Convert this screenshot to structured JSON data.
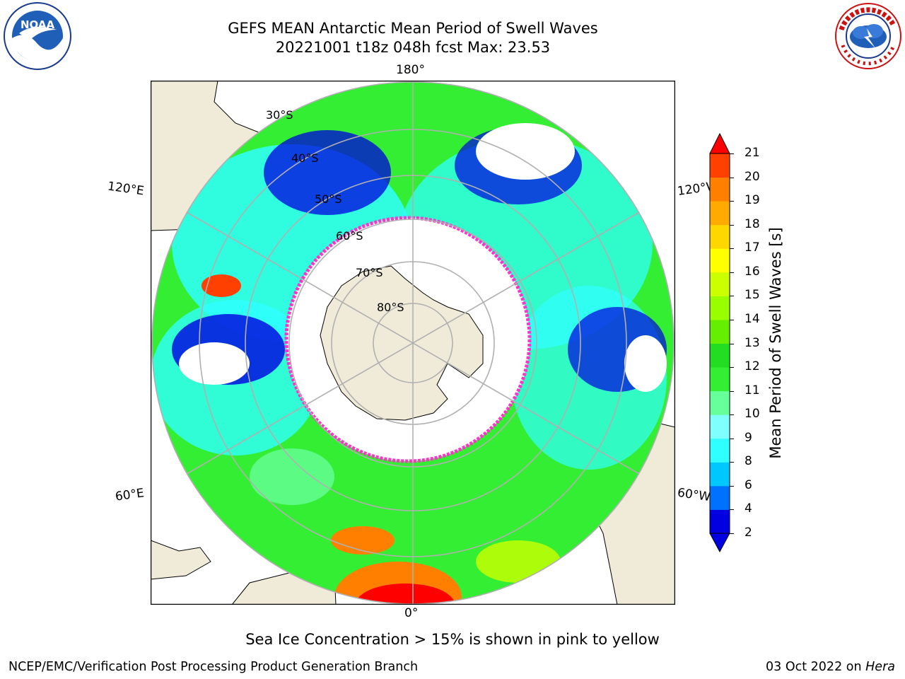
{
  "header": {
    "title_line1": "GEFS MEAN Antarctic Mean Period of Swell Waves",
    "title_line2": "20221001 t18z 048h fcst   Max: 23.53"
  },
  "logos": {
    "left": {
      "text": "NOAA",
      "icon": "noaa-logo-icon"
    },
    "right": {
      "text": "NATIONAL WEATHER SERVICE",
      "icon": "nws-logo-icon"
    }
  },
  "map": {
    "projection": "south-polar-stereographic",
    "longitude_labels": {
      "top": "180°",
      "bottom": "0°",
      "left_upper": "120°E",
      "left_lower": "60°E",
      "right_upper": "120°W",
      "right_lower": "60°W"
    },
    "latitude_labels": [
      "30°S",
      "40°S",
      "50°S",
      "60°S",
      "70°S",
      "80°S"
    ],
    "colors": {
      "land": "#efebd8",
      "ice": "#ffffff",
      "ice_edge": "#ff33cc",
      "grid": "#b0b0b0"
    }
  },
  "colorbar": {
    "label": "Mean Period of Swell Waves [s]",
    "ticks": [
      "2",
      "4",
      "6",
      "8",
      "9",
      "10",
      "11",
      "12",
      "13",
      "14",
      "15",
      "16",
      "17",
      "18",
      "19",
      "20",
      "21"
    ],
    "colors": [
      "#0000e0",
      "#0070ff",
      "#00c8ff",
      "#30ffff",
      "#80ffff",
      "#66ff99",
      "#33ee33",
      "#22dd22",
      "#66ee00",
      "#99ff00",
      "#ccff00",
      "#ffff00",
      "#ffd700",
      "#ffaa00",
      "#ff8000",
      "#ff4000"
    ],
    "under_color": "#0000e0",
    "over_color": "#ff0000"
  },
  "notes": {
    "ice_note": "Sea Ice Concentration > 15% is shown in pink to yellow"
  },
  "footer": {
    "left": "NCEP/EMC/Verification Post Processing Product Generation Branch",
    "right_prefix": "03 Oct 2022 on ",
    "right_host": "Hera"
  }
}
